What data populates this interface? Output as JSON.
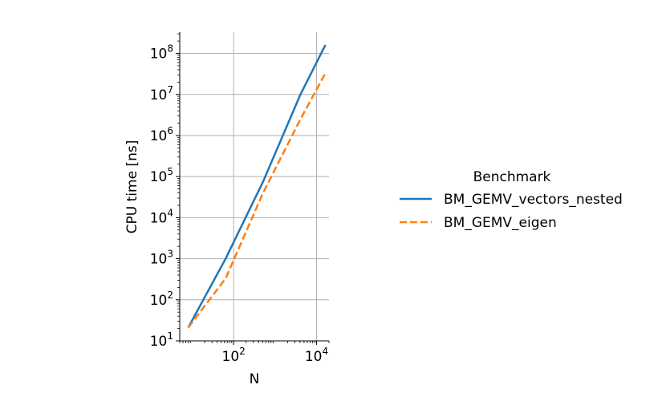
{
  "chart_data": {
    "type": "line",
    "title": "",
    "xlabel": "N",
    "ylabel": "CPU time [ns]",
    "xscale": "log",
    "yscale": "log",
    "xlim": [
      5,
      20000
    ],
    "ylim": [
      10,
      330000000
    ],
    "x_ticks": [
      {
        "value": 100,
        "base": "10",
        "exp": "2"
      },
      {
        "value": 10000,
        "base": "10",
        "exp": "4"
      }
    ],
    "y_ticks": [
      {
        "value": 10,
        "base": "10",
        "exp": "1"
      },
      {
        "value": 100,
        "base": "10",
        "exp": "2"
      },
      {
        "value": 1000,
        "base": "10",
        "exp": "3"
      },
      {
        "value": 10000,
        "base": "10",
        "exp": "4"
      },
      {
        "value": 100000,
        "base": "10",
        "exp": "5"
      },
      {
        "value": 1000000,
        "base": "10",
        "exp": "6"
      },
      {
        "value": 10000000,
        "base": "10",
        "exp": "7"
      },
      {
        "value": 100000000,
        "base": "10",
        "exp": "8"
      }
    ],
    "grid": true,
    "legend": {
      "title": "Benchmark",
      "placement": "right outside"
    },
    "series": [
      {
        "name": "BM_GEMV_vectors_nested",
        "color": "#1f77b4",
        "dash": "solid",
        "points": [
          [
            8,
            21
          ],
          [
            64,
            1000
          ],
          [
            512,
            75000
          ],
          [
            4096,
            10000000
          ],
          [
            16384,
            160000000
          ]
        ]
      },
      {
        "name": "BM_GEMV_eigen",
        "color": "#ff7f0e",
        "dash": "dashed",
        "points": [
          [
            8,
            21
          ],
          [
            64,
            330
          ],
          [
            512,
            40000
          ],
          [
            4096,
            2500000
          ],
          [
            16384,
            33000000
          ]
        ]
      }
    ]
  }
}
